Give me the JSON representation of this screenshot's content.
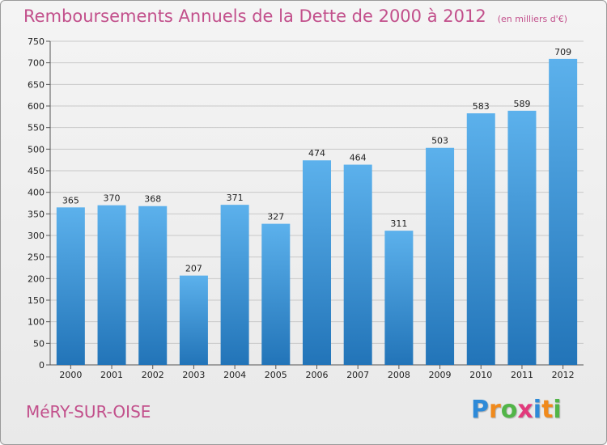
{
  "header": {
    "title": "Remboursements Annuels de la Dette de 2000 à 2012",
    "unit": "(en milliers d'€)"
  },
  "footer": {
    "commune": "MéRY-SUR-OISE",
    "brand": [
      "P",
      "r",
      "o",
      "x",
      "i",
      "t",
      "i"
    ],
    "brand_colors": [
      "#2e8ad8",
      "#f08a1c",
      "#52b548",
      "#e23a7c",
      "#2e8ad8",
      "#f08a1c",
      "#52b548"
    ]
  },
  "colors": {
    "bar_top": "#5cb1ec",
    "bar_bottom": "#2274b8",
    "grid": "#c8c8c8",
    "title": "#c24f8b"
  },
  "chart_data": {
    "type": "bar",
    "title": "Remboursements Annuels de la Dette de 2000 à 2012",
    "subtitle": "(en milliers d'€)",
    "categories": [
      "2000",
      "2001",
      "2002",
      "2003",
      "2004",
      "2005",
      "2006",
      "2007",
      "2008",
      "2009",
      "2010",
      "2011",
      "2012"
    ],
    "values": [
      365,
      370,
      368,
      207,
      371,
      327,
      474,
      464,
      311,
      503,
      583,
      589,
      709
    ],
    "ylim": [
      0,
      750
    ],
    "yticks": [
      0,
      50,
      100,
      150,
      200,
      250,
      300,
      350,
      400,
      450,
      500,
      550,
      600,
      650,
      700,
      750
    ],
    "grid": true,
    "legend": "none"
  }
}
